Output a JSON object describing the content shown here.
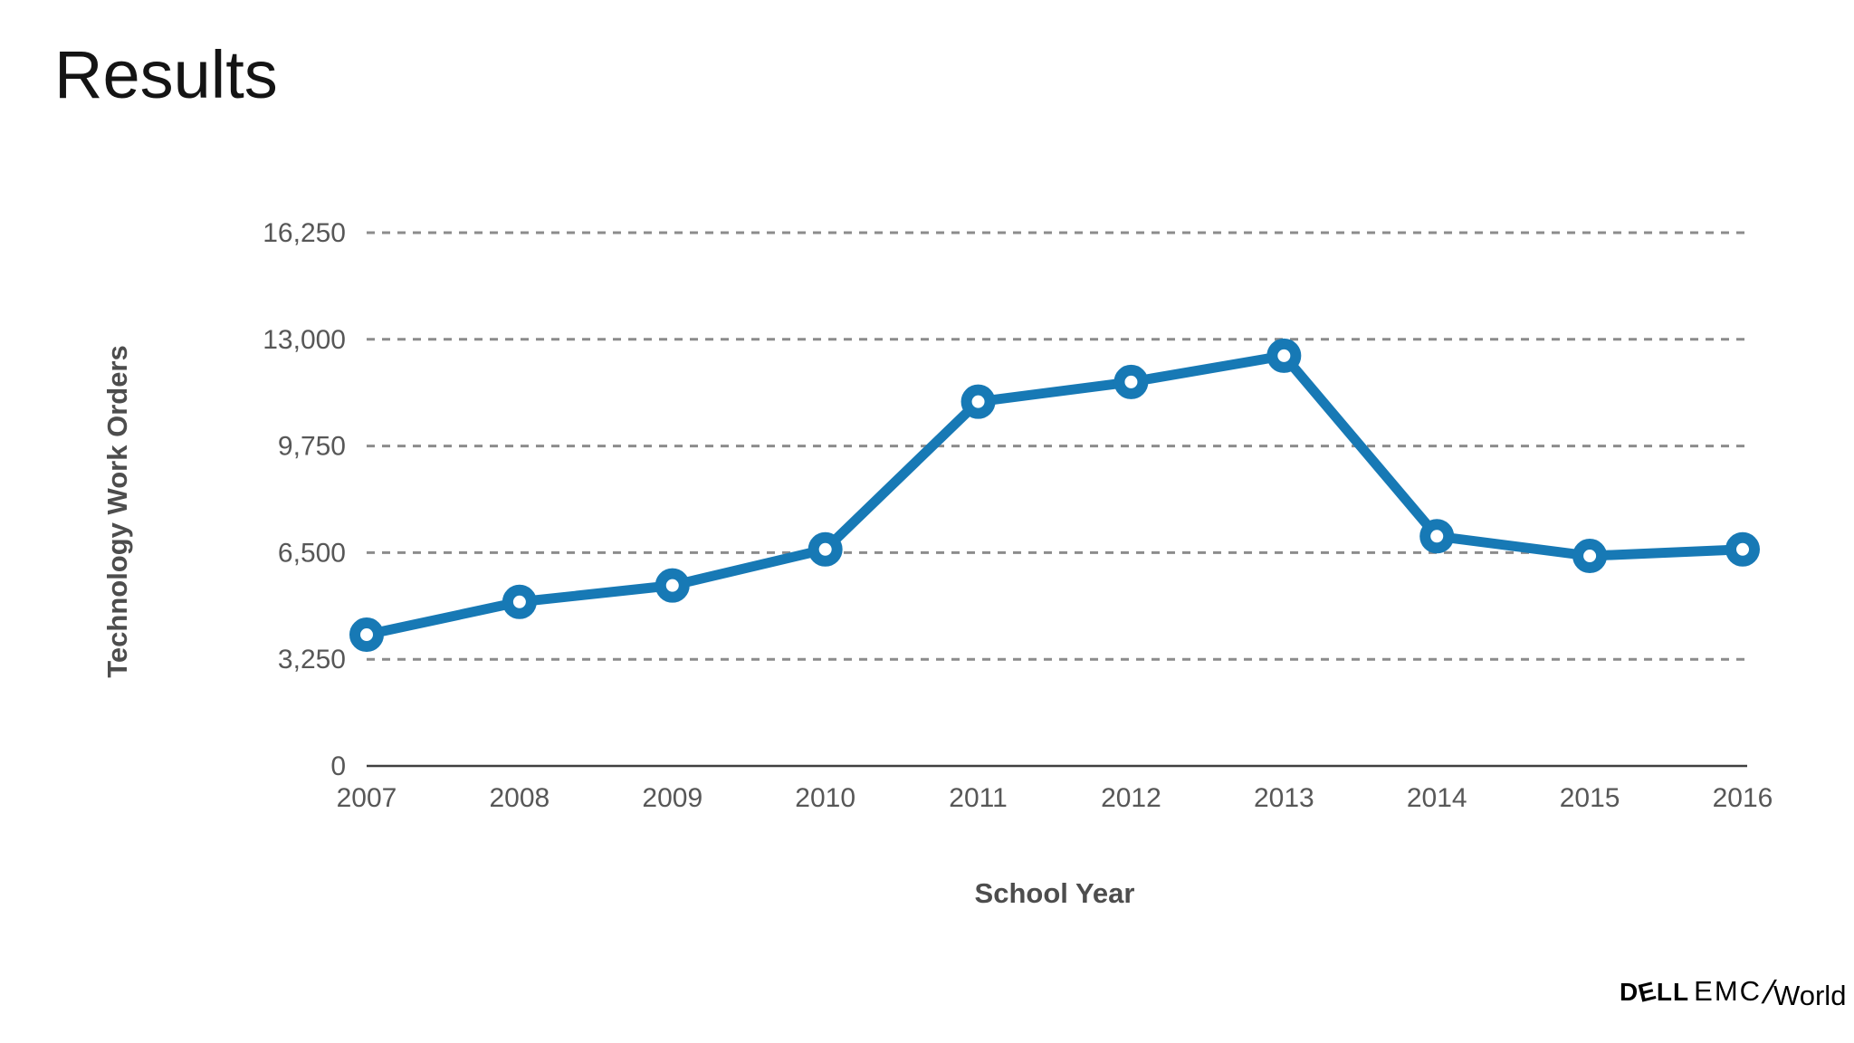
{
  "slide": {
    "title": "Results"
  },
  "chart_data": {
    "type": "line",
    "title": "",
    "xlabel": "School Year",
    "ylabel": "Technology Work Orders",
    "categories": [
      "2007",
      "2008",
      "2009",
      "2010",
      "2011",
      "2012",
      "2013",
      "2014",
      "2015",
      "2016"
    ],
    "series": [
      {
        "name": "Technology Work Orders",
        "values": [
          4000,
          5000,
          5500,
          6600,
          11100,
          11700,
          12500,
          7000,
          6400,
          6600
        ]
      }
    ],
    "ylim": [
      0,
      16250
    ],
    "yticks": [
      0,
      3250,
      6500,
      9750,
      13000,
      16250
    ],
    "ytick_labels": [
      "0",
      "3,250",
      "6,500",
      "9,750",
      "13,000",
      "16,250"
    ],
    "grid": "horizontal-dashed",
    "legend": "none",
    "line_color": "#1779b5",
    "marker": "open-circle",
    "marker_fill": "#ffffff",
    "gridline_color": "#8c8c8c",
    "axis_line_color": "#3f3f3f",
    "tick_label_color": "#575757",
    "axis_title_color": "#4d4d4d"
  },
  "logo": {
    "dell_d": "D",
    "dell_e": "E",
    "dell_ll": "LL",
    "emc": "EMC",
    "slash": "/",
    "world": "World"
  }
}
